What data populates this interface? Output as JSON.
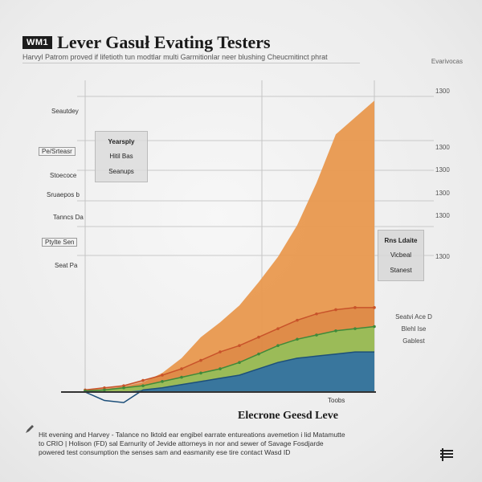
{
  "header": {
    "badge": "WM1",
    "title": "Lever Gasuł Evating Testers",
    "subtitle": "Harvyl Patrom proved if lifetioth tun modtlar multi Garmitionlar neer blushing Cheucmitinct phrat"
  },
  "corner_note": "Evarivocas",
  "left_notes": [
    "Seautdey",
    "Pe/Srteasr",
    "Stoecoce",
    "Sruaepos b",
    "Tanncs Da",
    "Ptylte Sen",
    "Seat Pa"
  ],
  "callout_left": [
    "Yearsply",
    "Hitil Bas",
    "Seanups"
  ],
  "callout_right": [
    "Rns Ldaite",
    "Vicbeal",
    "Stanest"
  ],
  "side_legend": [
    "Seatvi Ace D",
    "Blehl Ise",
    "Gablest"
  ],
  "x_note": "Toobs",
  "footer": {
    "line1": "Hit evening and Harvey - Talance no Iktold ear engibel earrate entureations avemetion i lid Matamutte",
    "line2": "to CRIO | Holison (FD) sal Earnurity of Jevide attorneys in nor and sewer of Savage Fosdjarde",
    "line3": "powered test consumption the senses sam and easmanity ese tire contact Wasd ID"
  },
  "colors": {
    "orange": "#e8964a",
    "red_line": "#c8532a",
    "green": "#8fc35a",
    "green_line": "#3f8a3a",
    "blue": "#2f6fa5"
  },
  "chart_data": {
    "type": "area",
    "title": "Lever Gasuł Evating Testers",
    "xlabel": "Elecrone Geesd Leve",
    "ylabel": "",
    "y_tick_labels": [
      "1300",
      "1300",
      "1300",
      "1300",
      "1300",
      "1300"
    ],
    "x": [
      0,
      1,
      2,
      3,
      4,
      5,
      6,
      7,
      8,
      9,
      10,
      11,
      12,
      13,
      14,
      15
    ],
    "ylim": [
      0,
      1400
    ],
    "grid": true,
    "legend": "none",
    "series": [
      {
        "name": "",
        "color": "orange",
        "values": [
          10,
          15,
          25,
          45,
          90,
          160,
          260,
          330,
          410,
          520,
          640,
          790,
          990,
          1220,
          1300,
          1380
        ]
      },
      {
        "name": "",
        "color": "red",
        "values": [
          10,
          20,
          30,
          55,
          80,
          110,
          150,
          190,
          220,
          260,
          300,
          340,
          370,
          390,
          400,
          400
        ]
      },
      {
        "name": "",
        "color": "green",
        "values": [
          5,
          10,
          20,
          30,
          50,
          70,
          90,
          110,
          140,
          180,
          220,
          250,
          270,
          290,
          300,
          310
        ]
      },
      {
        "name": "",
        "color": "blue",
        "values": [
          0,
          -40,
          -50,
          10,
          20,
          35,
          50,
          65,
          80,
          110,
          140,
          160,
          170,
          180,
          190,
          190
        ]
      }
    ]
  }
}
